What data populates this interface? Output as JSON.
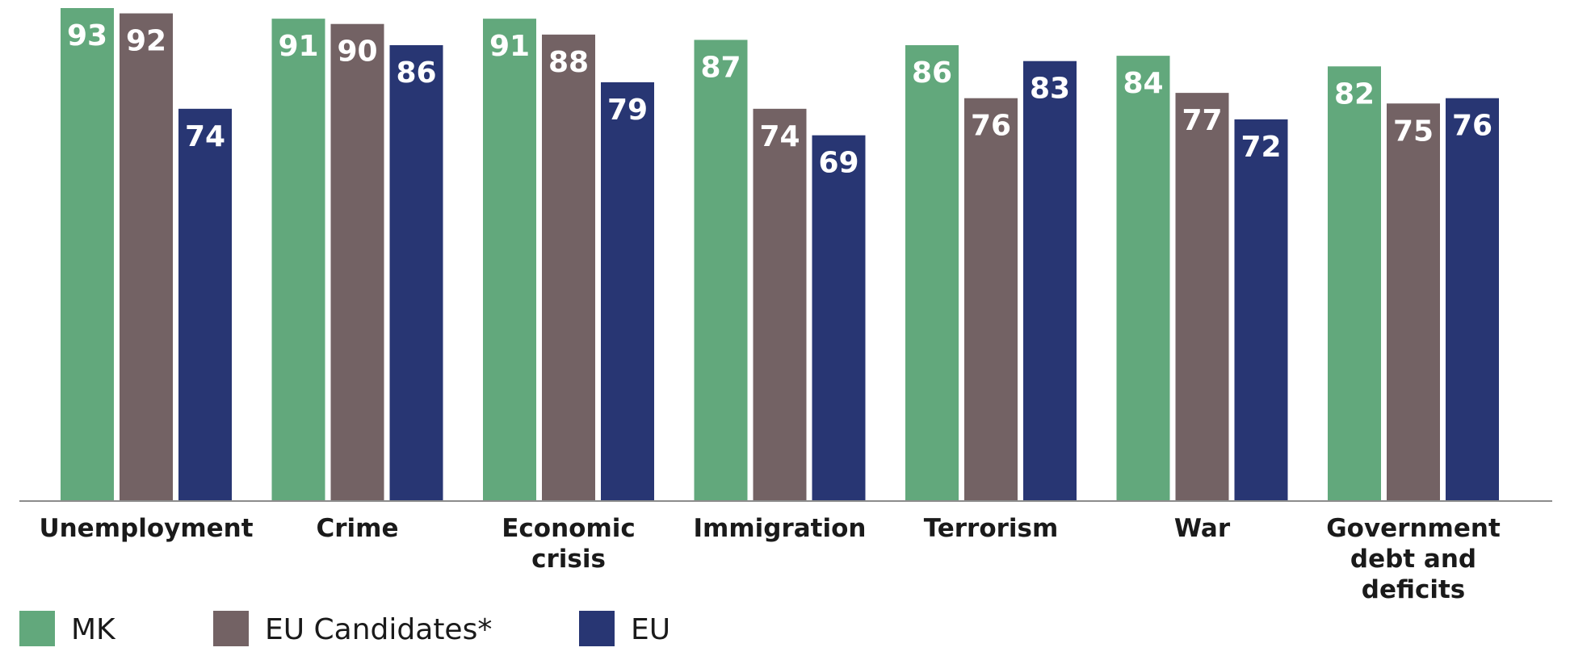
{
  "chart_data": {
    "type": "bar",
    "title": "",
    "xlabel": "",
    "ylabel": "",
    "ylim": [
      0,
      93
    ],
    "grid": false,
    "legend_position": "bottom-left",
    "categories": [
      [
        "Unemployment"
      ],
      [
        "Crime"
      ],
      [
        "Economic",
        "crisis"
      ],
      [
        "Immigration"
      ],
      [
        "Terrorism"
      ],
      [
        "War"
      ],
      [
        "Government",
        "debt and",
        "deficits"
      ]
    ],
    "series": [
      {
        "name": "MK",
        "color": "#62a87c",
        "values": [
          93,
          91,
          91,
          87,
          86,
          84,
          82
        ]
      },
      {
        "name": "EU Candidates*",
        "color": "#736264",
        "values": [
          92,
          90,
          88,
          74,
          76,
          77,
          75
        ]
      },
      {
        "name": "EU",
        "color": "#283673",
        "values": [
          74,
          86,
          79,
          69,
          83,
          72,
          76
        ]
      }
    ]
  }
}
